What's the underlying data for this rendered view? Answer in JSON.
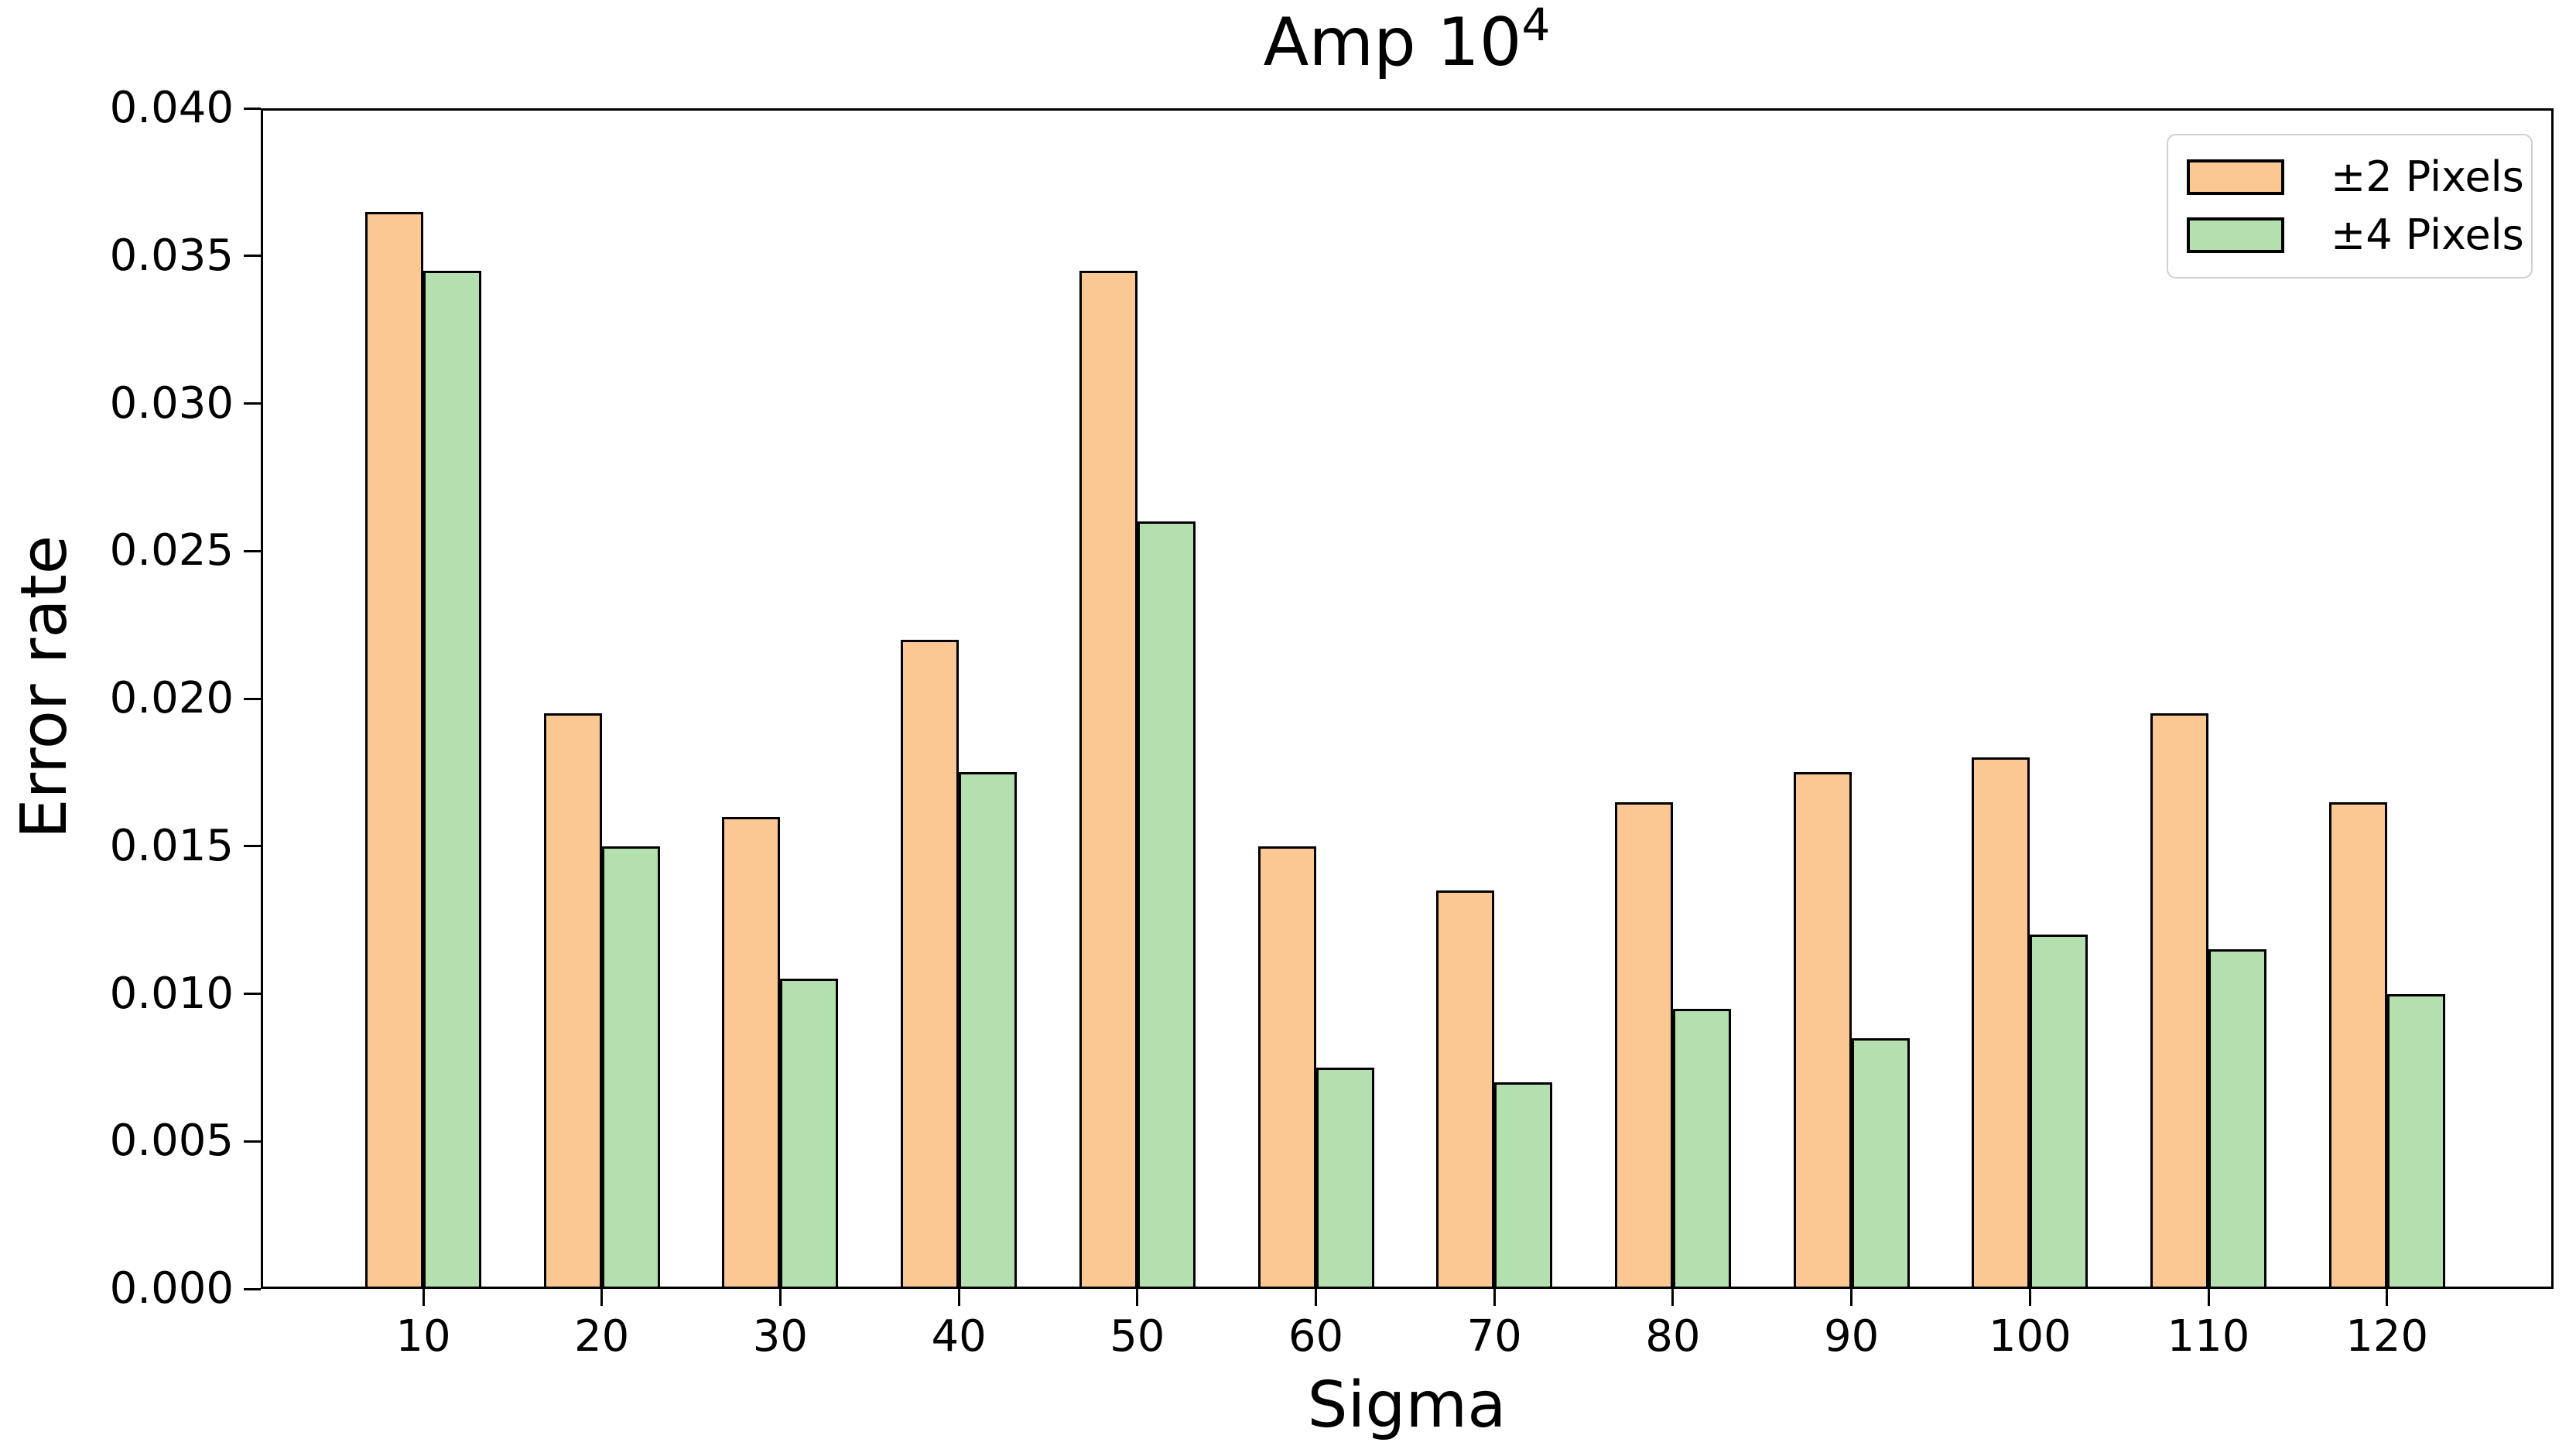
{
  "chart_data": {
    "type": "bar",
    "title": "Amp 10⁴",
    "title_base": "Amp 10",
    "title_superscript": "4",
    "xlabel": "Sigma",
    "ylabel": "Error rate",
    "categories": [
      "10",
      "20",
      "30",
      "40",
      "50",
      "60",
      "70",
      "80",
      "90",
      "100",
      "110",
      "120"
    ],
    "series": [
      {
        "name": "±2 Pixels",
        "fill_color": "#FBC893",
        "edge_color": "#000000",
        "values": [
          0.0365,
          0.0195,
          0.016,
          0.022,
          0.0345,
          0.015,
          0.0135,
          0.0165,
          0.0175,
          0.018,
          0.0195,
          0.0165
        ]
      },
      {
        "name": "±4 Pixels",
        "fill_color": "#B3E0AE",
        "edge_color": "#000000",
        "values": [
          0.0345,
          0.015,
          0.0105,
          0.0175,
          0.026,
          0.0075,
          0.007,
          0.0095,
          0.0085,
          0.012,
          0.0115,
          0.01
        ]
      }
    ],
    "ylim": [
      0,
      0.04
    ],
    "ytick_step": 0.005,
    "ytick_labels": [
      "0.000",
      "0.005",
      "0.010",
      "0.015",
      "0.020",
      "0.025",
      "0.030",
      "0.035",
      "0.040"
    ],
    "grid": false,
    "legend_position": "upper right",
    "background_color": "#ffffff",
    "axis_color": "#000000"
  }
}
